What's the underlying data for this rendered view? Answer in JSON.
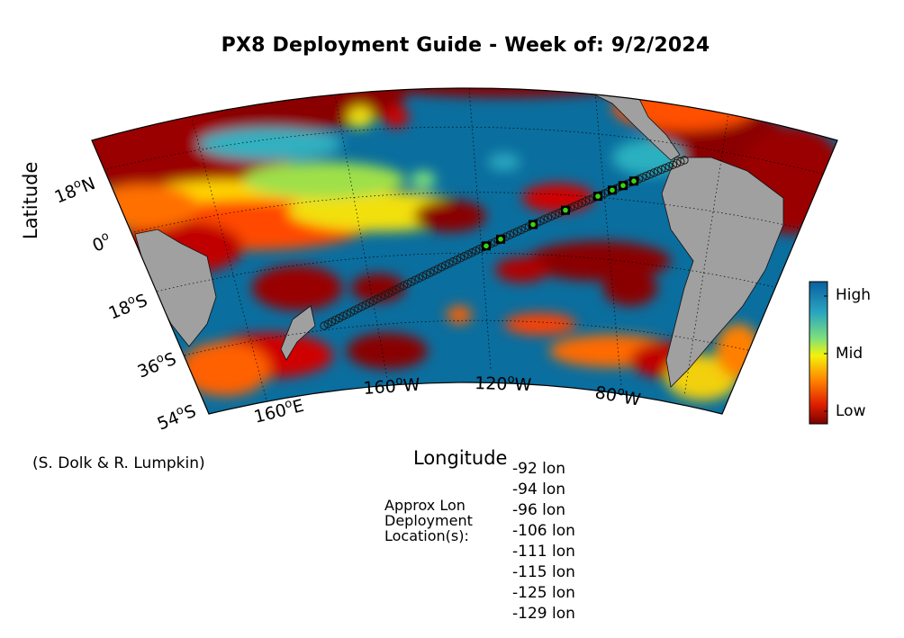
{
  "title": "PX8 Deployment Guide - Week of: 9/2/2024",
  "axes": {
    "xlabel": "Longitude",
    "ylabel": "Latitude",
    "lat_ticks": [
      {
        "deg": "18",
        "hemi": "N"
      },
      {
        "deg": "0",
        "hemi": ""
      },
      {
        "deg": "18",
        "hemi": "S"
      },
      {
        "deg": "36",
        "hemi": "S"
      },
      {
        "deg": "54",
        "hemi": "S"
      }
    ],
    "lon_ticks": [
      {
        "deg": "160",
        "hemi": "E"
      },
      {
        "deg": "160",
        "hemi": "W"
      },
      {
        "deg": "120",
        "hemi": "W"
      },
      {
        "deg": "80",
        "hemi": "W"
      }
    ]
  },
  "colorbar": {
    "labels": [
      "High",
      "Mid",
      "Low"
    ],
    "colors": [
      "#0a5fa0",
      "#2aa7c0",
      "#7ee07a",
      "#f4f20a",
      "#ff8000",
      "#e02000",
      "#7a0000"
    ]
  },
  "credit": "(S. Dolk & R. Lumpkin)",
  "deployment": {
    "label_lines": [
      "Approx Lon",
      "Deployment",
      "Location(s):"
    ],
    "locations": [
      "-92 lon",
      "-94 lon",
      "-96 lon",
      "-106 lon",
      "-111 lon",
      "-115 lon",
      "-125 lon",
      "-129 lon"
    ]
  },
  "map_colors": {
    "land": "#a0a0a0",
    "high": "#0a6e9e",
    "low": "#7a0000",
    "track_marker": "#1a1a1a",
    "deploy_marker": "#39d410"
  }
}
